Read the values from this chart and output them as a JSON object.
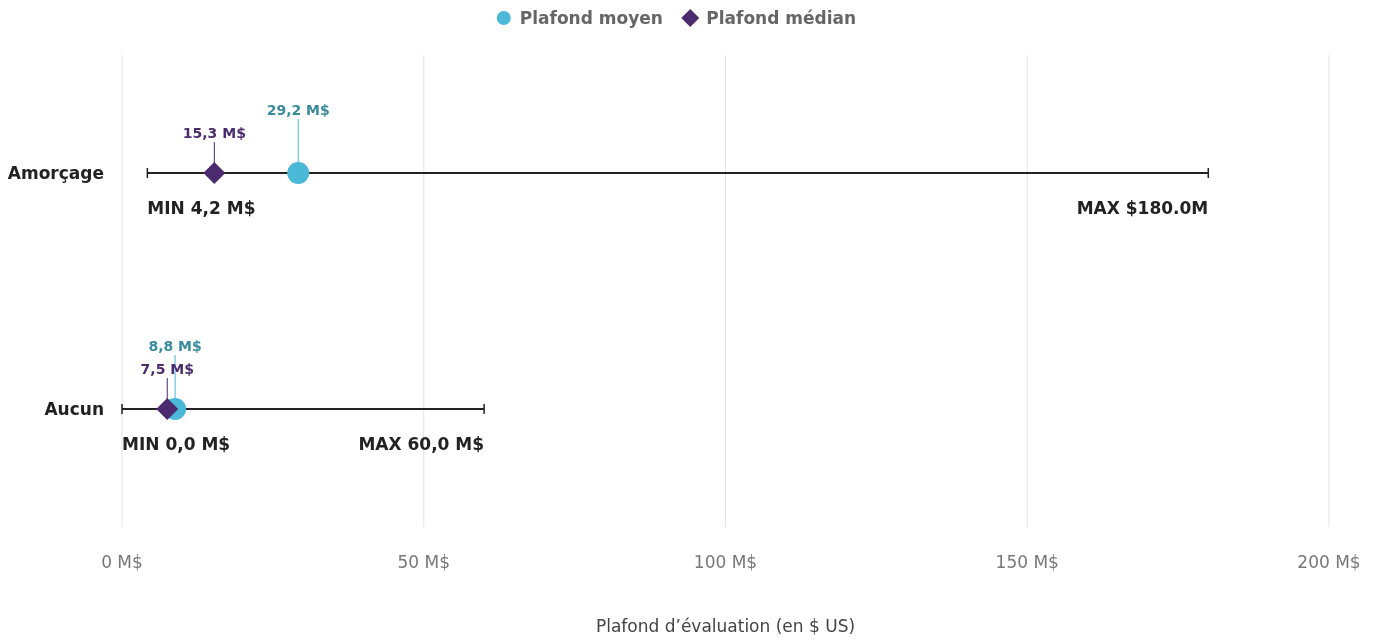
{
  "chart_data": {
    "type": "scatter",
    "orientation": "horizontal",
    "categories": [
      "Amorçage",
      "Aucun"
    ],
    "series": [
      {
        "type": "bar",
        "color": "#222222",
        "base": [
          4.2,
          0
        ],
        "values": [
          175.8,
          60
        ]
      },
      {
        "name": "Plafond moyen",
        "color": "#4bb8d8",
        "marker": "circle",
        "values": [
          29.2,
          8.8
        ],
        "value_labels": [
          "29,2 M$",
          "8,8 M$"
        ]
      },
      {
        "name": "Plafond médian",
        "color": "#4b2a6e",
        "marker": "diamond",
        "values": [
          15.3,
          7.5
        ],
        "value_labels": [
          "15,3 M$",
          "7,5 M$"
        ]
      }
    ],
    "annotations": [
      {
        "text": "MIN 4,2 M$",
        "x": 4.2,
        "y": "Amorçage"
      },
      {
        "text": "MAX $180.0M",
        "x": 180,
        "y": "Amorçage"
      },
      {
        "text": "MIN 0,0 M$",
        "x": 0,
        "y": "Aucun"
      },
      {
        "text": "MAX 60,0 M$",
        "x": 60,
        "y": "Aucun"
      }
    ],
    "xlim": [
      0,
      200
    ],
    "xticks": [
      {
        "value": 0,
        "label": "0 M$"
      },
      {
        "value": 50,
        "label": "50 M$"
      },
      {
        "value": 100,
        "label": "100 M$"
      },
      {
        "value": 150,
        "label": "150 M$"
      },
      {
        "value": 200,
        "label": "200 M$"
      }
    ],
    "xlabel": "Plafond d’évaluation (en $ US)",
    "grid": "x",
    "legend": "top"
  }
}
